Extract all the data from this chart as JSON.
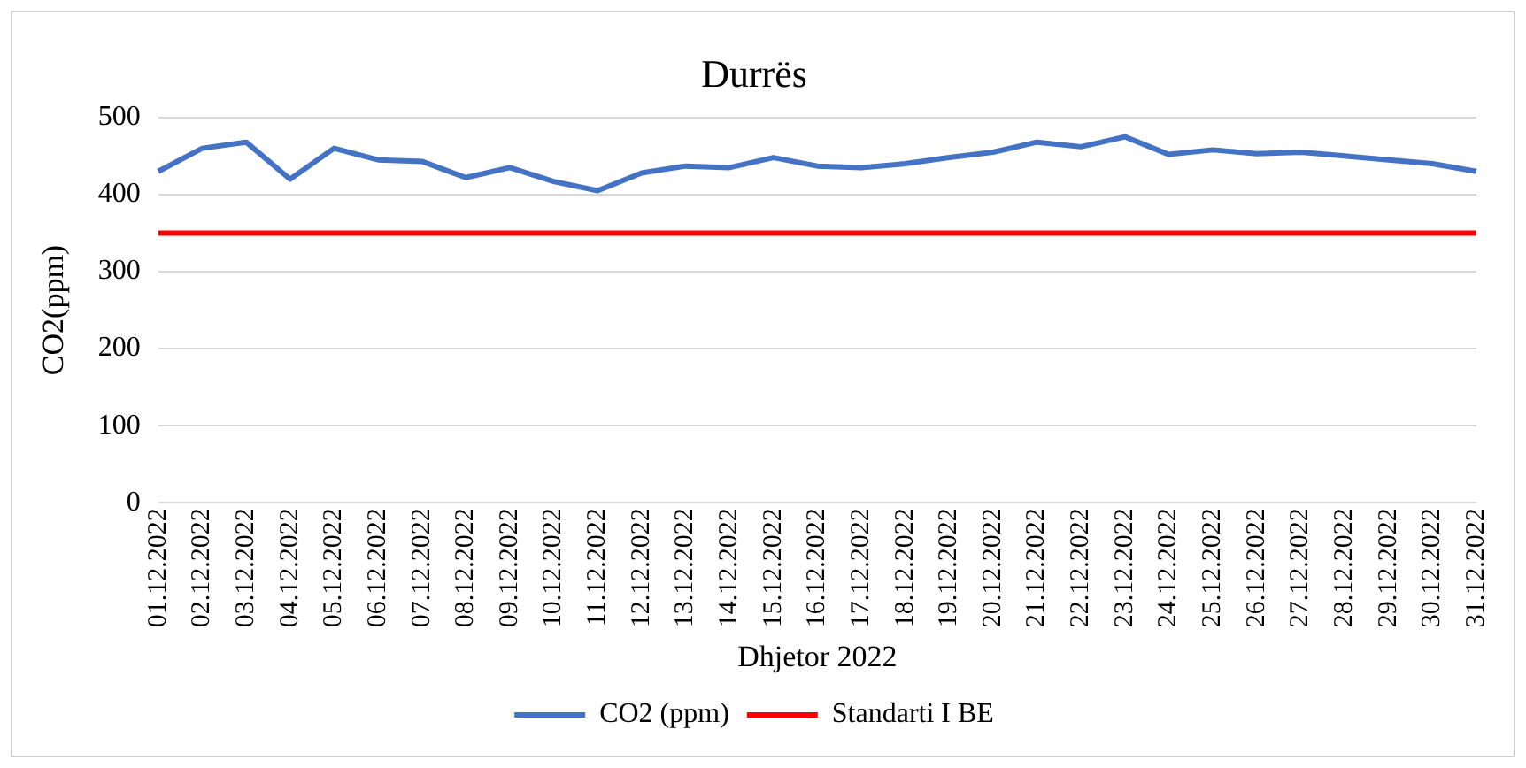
{
  "chart_data": {
    "type": "line",
    "title": "Durrës",
    "xlabel": "Dhjetor 2022",
    "ylabel": "CO2(ppm)",
    "categories": [
      "01.12.2022",
      "02.12.2022",
      "03.12.2022",
      "04.12.2022",
      "05.12.2022",
      "06.12.2022",
      "07.12.2022",
      "08.12.2022",
      "09.12.2022",
      "10.12.2022",
      "11.12.2022",
      "12.12.2022",
      "13.12.2022",
      "14.12.2022",
      "15.12.2022",
      "16.12.2022",
      "17.12.2022",
      "18.12.2022",
      "19.12.2022",
      "20.12.2022",
      "21.12.2022",
      "22.12.2022",
      "23.12.2022",
      "24.12.2022",
      "25.12.2022",
      "26.12.2022",
      "27.12.2022",
      "28.12.2022",
      "29.12.2022",
      "30.12.2022",
      "31.12.2022"
    ],
    "series": [
      {
        "name": "CO2 (ppm)",
        "color": "#4472c4",
        "values": [
          430,
          460,
          468,
          420,
          460,
          445,
          443,
          422,
          435,
          417,
          405,
          428,
          437,
          435,
          448,
          437,
          435,
          440,
          448,
          455,
          468,
          462,
          475,
          452,
          458,
          453,
          455,
          450,
          445,
          440,
          430
        ]
      },
      {
        "name": "Standarti I BE",
        "color": "#ff0000",
        "values": [
          350,
          350,
          350,
          350,
          350,
          350,
          350,
          350,
          350,
          350,
          350,
          350,
          350,
          350,
          350,
          350,
          350,
          350,
          350,
          350,
          350,
          350,
          350,
          350,
          350,
          350,
          350,
          350,
          350,
          350,
          350
        ]
      }
    ],
    "ylim": [
      0,
      500
    ],
    "yticks": [
      0,
      100,
      200,
      300,
      400,
      500
    ],
    "grid": "y",
    "legend": "bottom",
    "marker": "none",
    "line_style": "solid"
  }
}
